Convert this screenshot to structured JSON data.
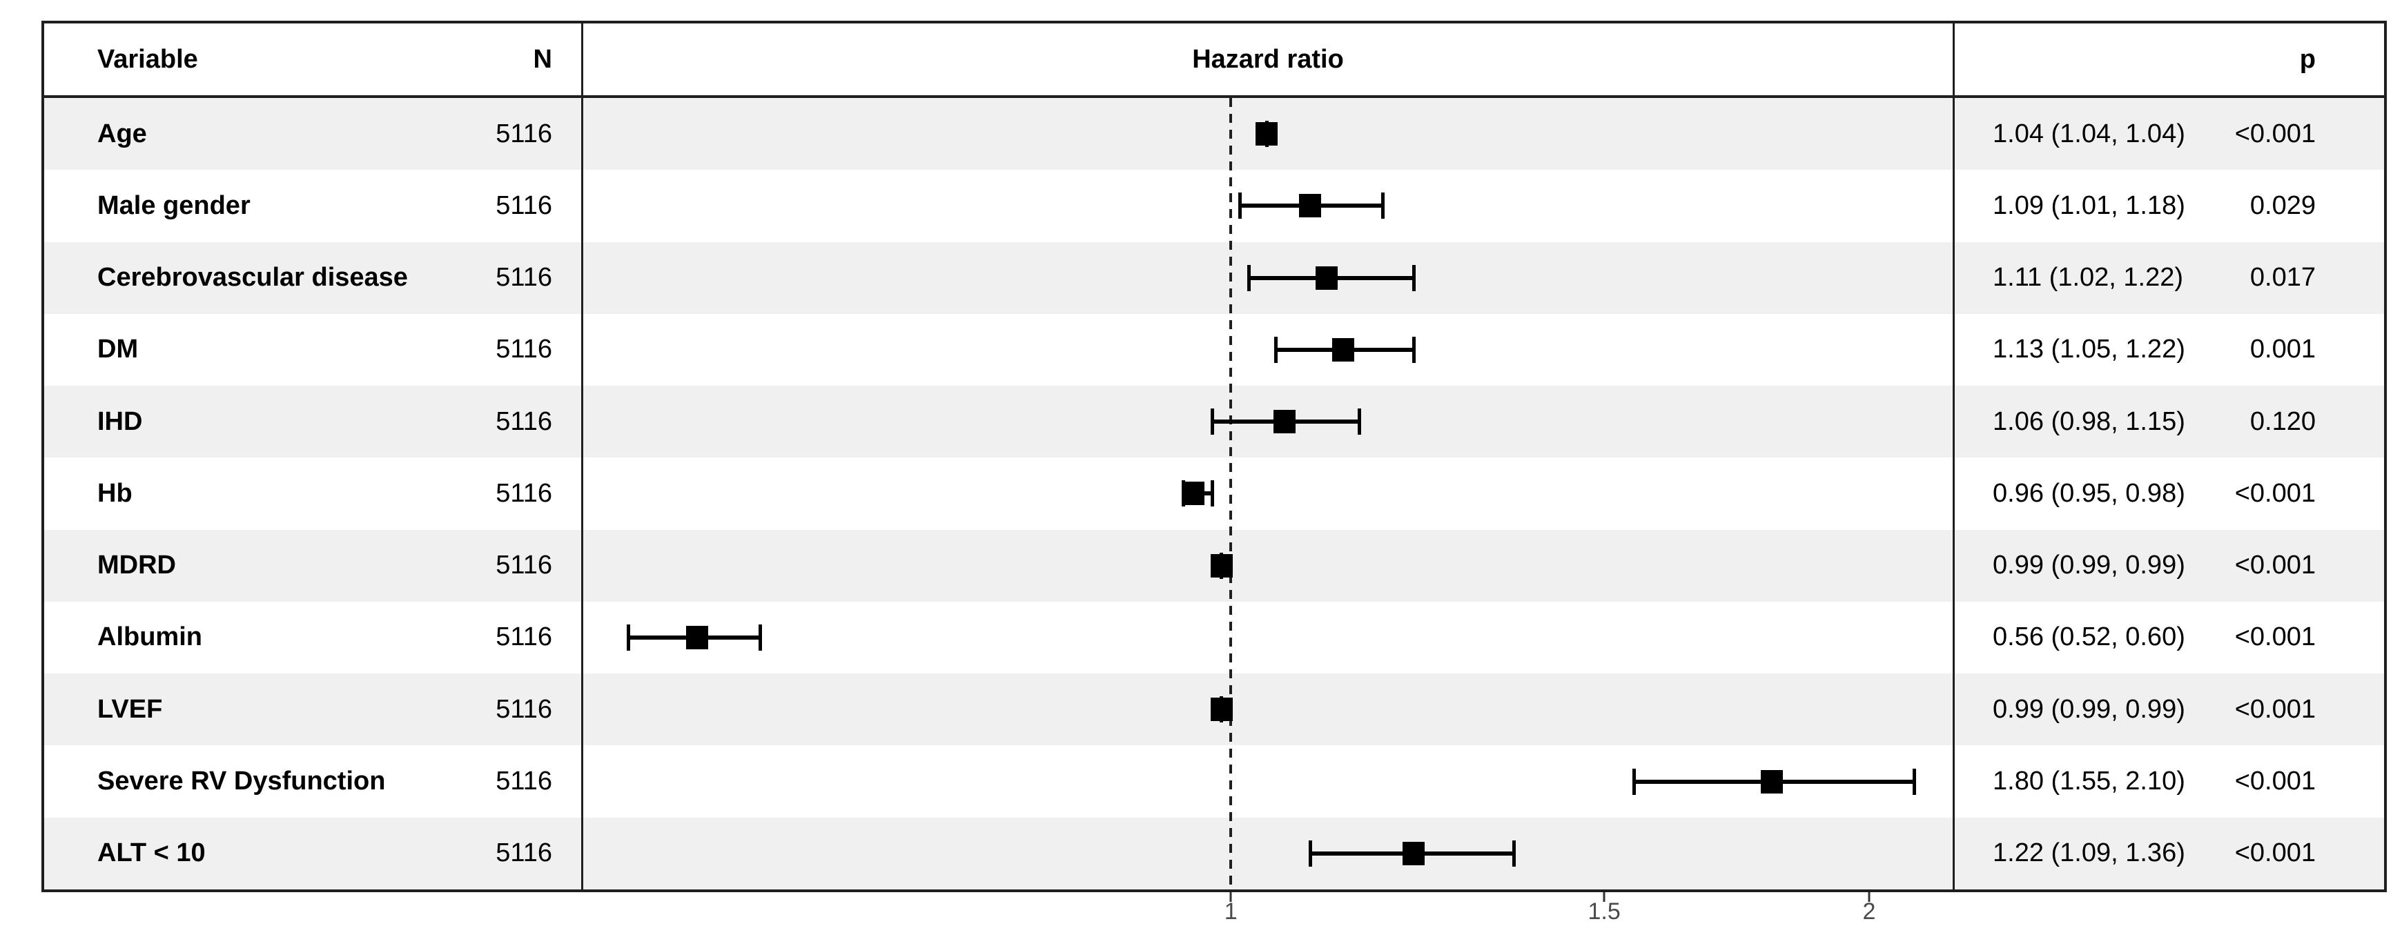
{
  "chart_data": {
    "type": "scatter",
    "subtype": "forest_plot",
    "headers": {
      "variable": "Variable",
      "n": "N",
      "hazard_ratio": "Hazard ratio",
      "p": "p"
    },
    "rows": [
      {
        "variable": "Age",
        "n": "5116",
        "hr": 1.04,
        "ci_low": 1.04,
        "ci_high": 1.04,
        "estimate_label": "1.04 (1.04, 1.04)",
        "p": "<0.001"
      },
      {
        "variable": "Male gender",
        "n": "5116",
        "hr": 1.09,
        "ci_low": 1.01,
        "ci_high": 1.18,
        "estimate_label": "1.09 (1.01, 1.18)",
        "p": "0.029"
      },
      {
        "variable": "Cerebrovascular disease",
        "n": "5116",
        "hr": 1.11,
        "ci_low": 1.02,
        "ci_high": 1.22,
        "estimate_label": "1.11 (1.02, 1.22)",
        "p": "0.017"
      },
      {
        "variable": "DM",
        "n": "5116",
        "hr": 1.13,
        "ci_low": 1.05,
        "ci_high": 1.22,
        "estimate_label": "1.13 (1.05, 1.22)",
        "p": "0.001"
      },
      {
        "variable": "IHD",
        "n": "5116",
        "hr": 1.06,
        "ci_low": 0.98,
        "ci_high": 1.15,
        "estimate_label": "1.06 (0.98, 1.15)",
        "p": "0.120"
      },
      {
        "variable": "Hb",
        "n": "5116",
        "hr": 0.96,
        "ci_low": 0.95,
        "ci_high": 0.98,
        "estimate_label": "0.96 (0.95, 0.98)",
        "p": "<0.001"
      },
      {
        "variable": "MDRD",
        "n": "5116",
        "hr": 0.99,
        "ci_low": 0.99,
        "ci_high": 0.99,
        "estimate_label": "0.99 (0.99, 0.99)",
        "p": "<0.001"
      },
      {
        "variable": "Albumin",
        "n": "5116",
        "hr": 0.56,
        "ci_low": 0.52,
        "ci_high": 0.6,
        "estimate_label": "0.56 (0.52, 0.60)",
        "p": "<0.001"
      },
      {
        "variable": "LVEF",
        "n": "5116",
        "hr": 0.99,
        "ci_low": 0.99,
        "ci_high": 0.99,
        "estimate_label": "0.99 (0.99, 0.99)",
        "p": "<0.001"
      },
      {
        "variable": "Severe RV Dysfunction",
        "n": "5116",
        "hr": 1.8,
        "ci_low": 1.55,
        "ci_high": 2.1,
        "estimate_label": "1.80 (1.55, 2.10)",
        "p": "<0.001"
      },
      {
        "variable": "ALT < 10",
        "n": "5116",
        "hr": 1.22,
        "ci_low": 1.09,
        "ci_high": 1.36,
        "estimate_label": "1.22 (1.09, 1.36)",
        "p": "<0.001"
      }
    ],
    "axis": {
      "scale": "log",
      "min": 0.495,
      "max": 2.19,
      "tick_values": [
        1,
        1.5,
        2
      ],
      "tick_labels": [
        "1",
        "1.5",
        "2"
      ],
      "reference_line": 1,
      "grid": false
    },
    "colors": {
      "stripe": "#f0f0f0",
      "line": "#1f1f1f",
      "marker": "#000000",
      "tick_label": "#4a4a4a"
    }
  }
}
